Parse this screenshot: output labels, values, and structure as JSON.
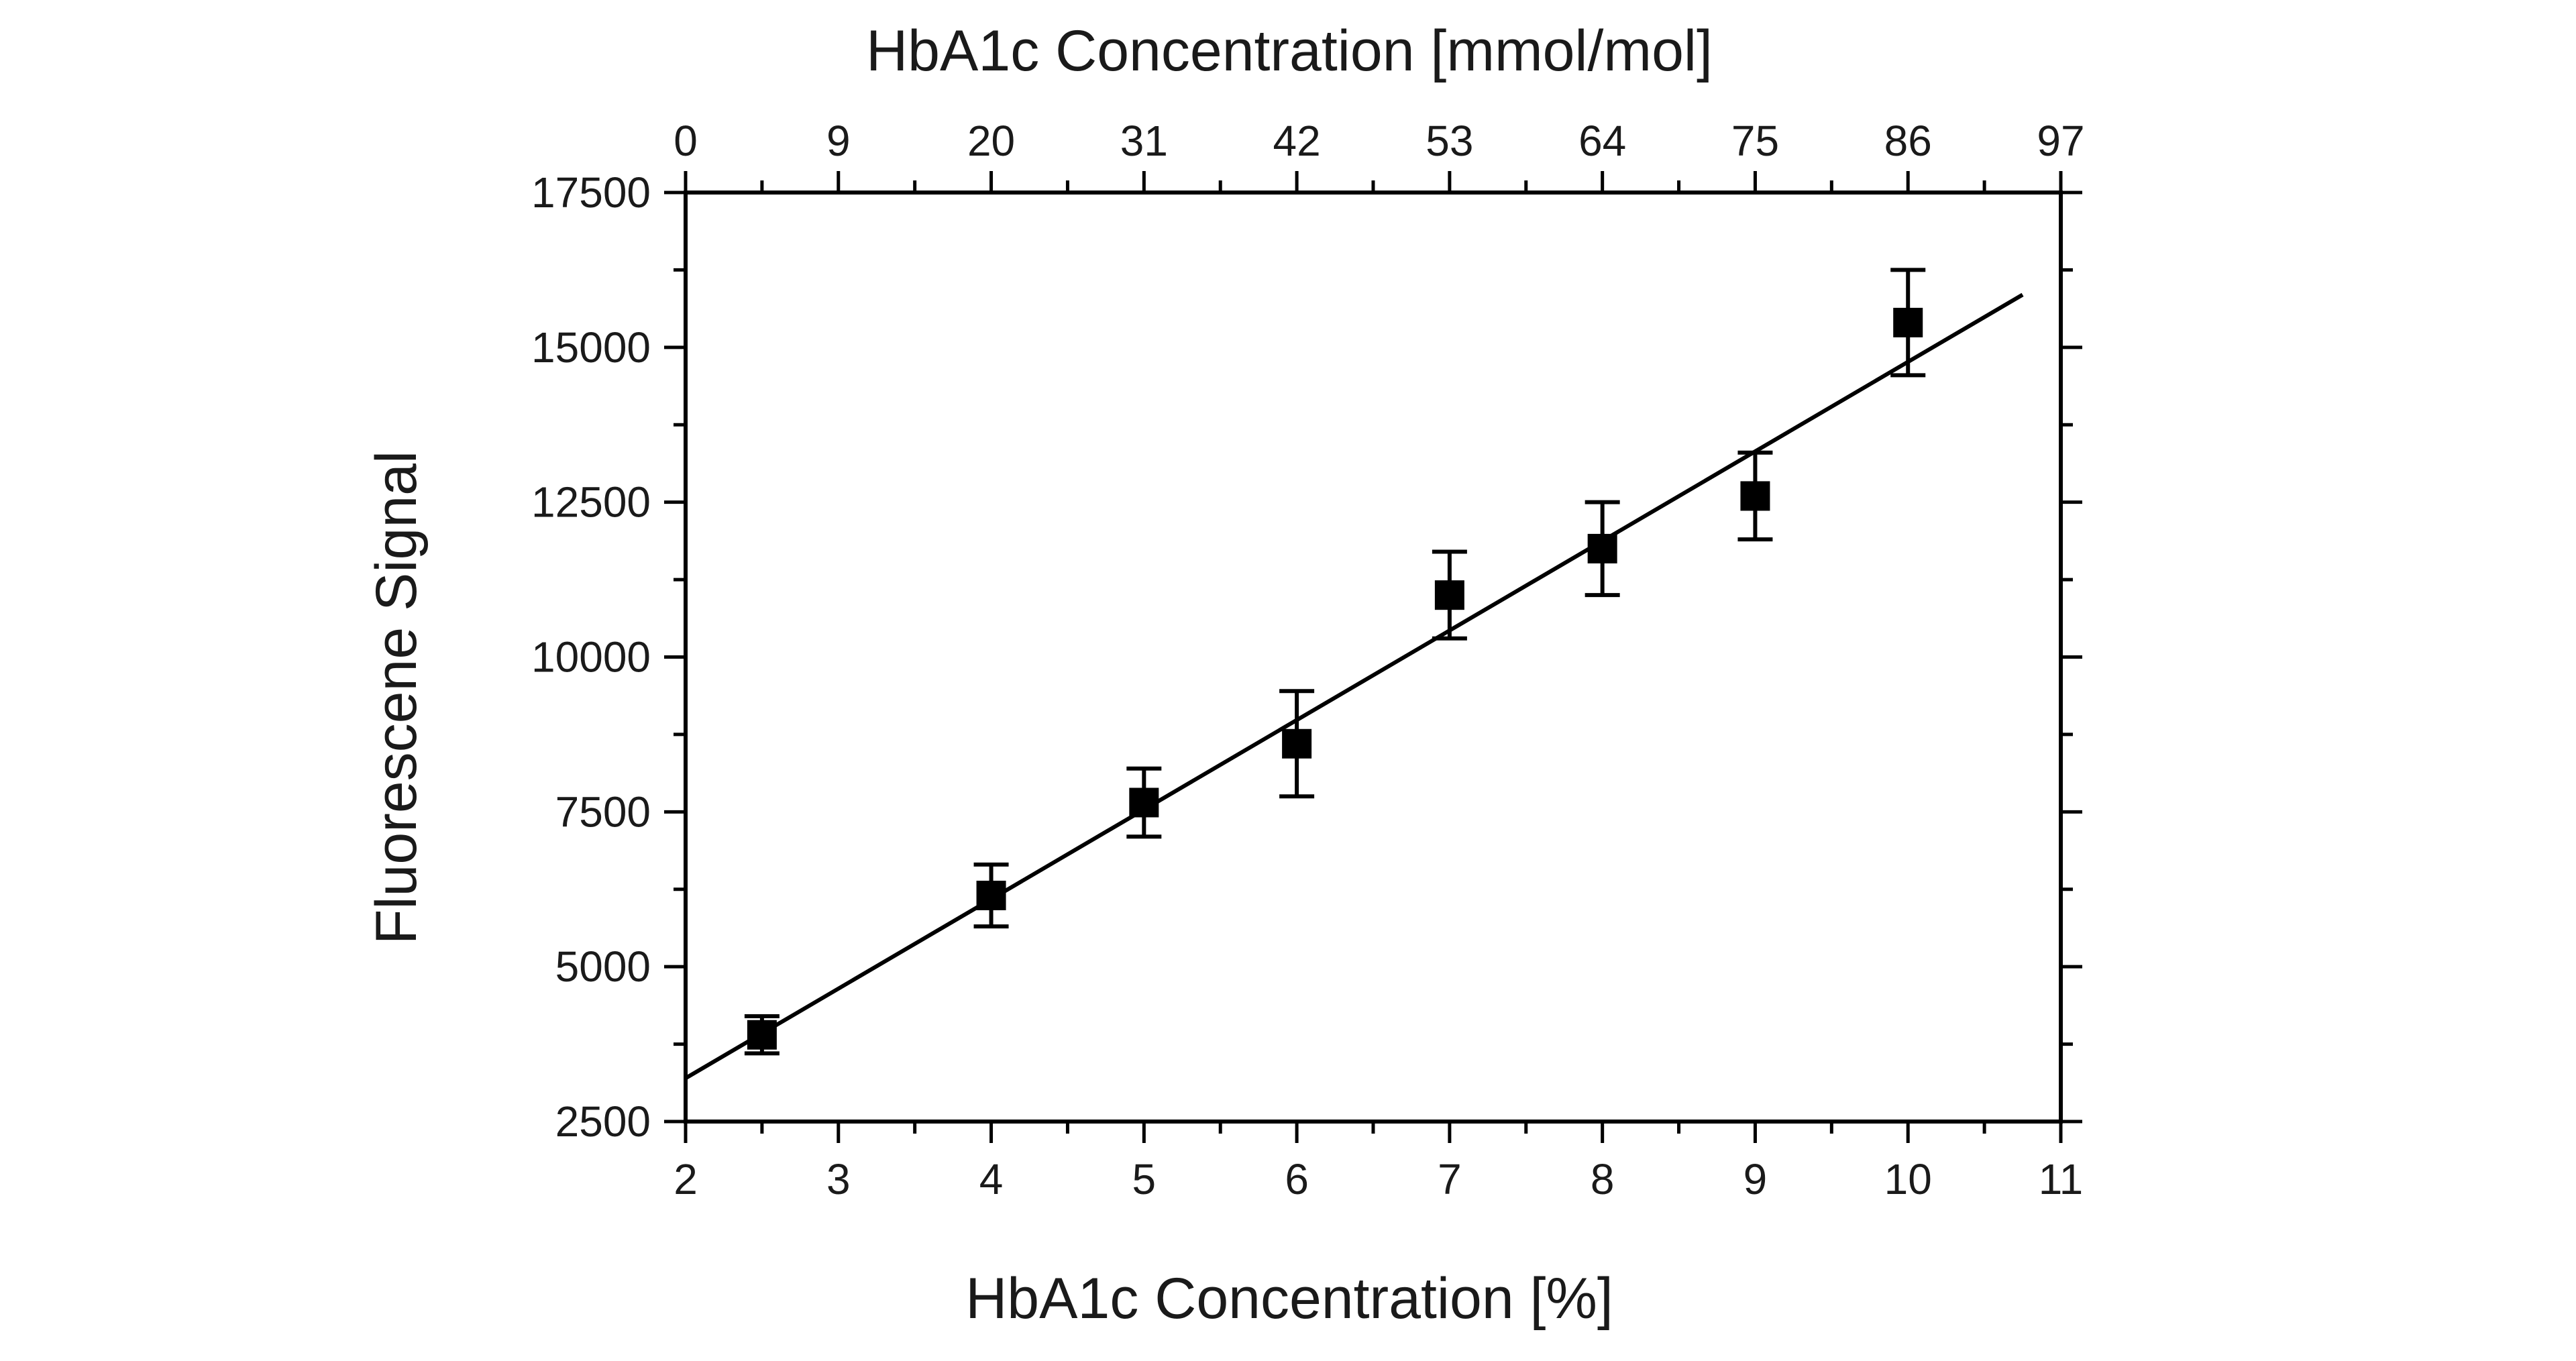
{
  "chart_data": {
    "type": "scatter",
    "xlabel": "HbA1c Concentration [%]",
    "x2label": "HbA1c Concentration [mmol/mol]",
    "ylabel": "Fluorescene Signal",
    "xlim": [
      2,
      11
    ],
    "ylim": [
      2500,
      17500
    ],
    "x_ticks": [
      "2",
      "3",
      "4",
      "5",
      "6",
      "7",
      "8",
      "9",
      "10",
      "11"
    ],
    "y_ticks": [
      "2500",
      "5000",
      "7500",
      "10000",
      "12500",
      "15000",
      "17500"
    ],
    "x2_ticks": [
      {
        "at": 2.0,
        "label": "0"
      },
      {
        "at": 3.0,
        "label": "9"
      },
      {
        "at": 4.0,
        "label": "20"
      },
      {
        "at": 5.0,
        "label": "31"
      },
      {
        "at": 6.0,
        "label": "42"
      },
      {
        "at": 7.0,
        "label": "53"
      },
      {
        "at": 8.0,
        "label": "64"
      },
      {
        "at": 9.0,
        "label": "75"
      },
      {
        "at": 10.0,
        "label": "86"
      },
      {
        "at": 11.0,
        "label": "97"
      }
    ],
    "points": [
      {
        "x": 2.5,
        "y": 3900,
        "err": 300
      },
      {
        "x": 4,
        "y": 6150,
        "err": 500
      },
      {
        "x": 5,
        "y": 7650,
        "err": 550
      },
      {
        "x": 6,
        "y": 8600,
        "err": 850
      },
      {
        "x": 7,
        "y": 11000,
        "err": 700
      },
      {
        "x": 8,
        "y": 11750,
        "err": 750
      },
      {
        "x": 9,
        "y": 12600,
        "err": 700
      },
      {
        "x": 10,
        "y": 15400,
        "err": 850
      }
    ],
    "fit_line": {
      "x": [
        2,
        10.75
      ],
      "y": [
        3200,
        15850
      ]
    },
    "grid": false,
    "legend": "none",
    "colors": {
      "marker": "#000000",
      "line": "#000000",
      "axis": "#000000"
    }
  }
}
